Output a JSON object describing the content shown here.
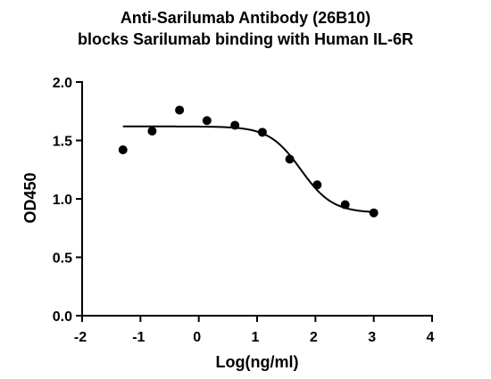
{
  "chart_data": {
    "type": "scatter",
    "title_lines": [
      "Anti-Sarilumab Antibody (26B10)",
      "blocks Sarilumab binding with Human IL-6R"
    ],
    "xlabel": "Log(ng/ml)",
    "ylabel": "OD450",
    "xlim": [
      -2,
      4
    ],
    "ylim": [
      0,
      2.0
    ],
    "x_ticks": [
      "-2",
      "-1",
      "0",
      "1",
      "2",
      "3",
      "4"
    ],
    "y_ticks": [
      "0.0",
      "0.5",
      "1.0",
      "1.5",
      "2.0"
    ],
    "grid": false,
    "legend": "none",
    "series": [
      {
        "points": [
          {
            "x": -1.3,
            "y": 1.42
          },
          {
            "x": -0.8,
            "y": 1.58
          },
          {
            "x": -0.33,
            "y": 1.76
          },
          {
            "x": 0.14,
            "y": 1.67
          },
          {
            "x": 0.62,
            "y": 1.63
          },
          {
            "x": 1.09,
            "y": 1.57
          },
          {
            "x": 1.56,
            "y": 1.34
          },
          {
            "x": 2.03,
            "y": 1.12
          },
          {
            "x": 2.51,
            "y": 0.95
          },
          {
            "x": 3.0,
            "y": 0.88
          }
        ],
        "fit": {
          "model": "4PL",
          "top": 1.62,
          "bottom": 0.88,
          "log_ic50": 1.75,
          "hill": 1.6,
          "x_range": [
            -1.3,
            3.0
          ]
        }
      }
    ]
  }
}
